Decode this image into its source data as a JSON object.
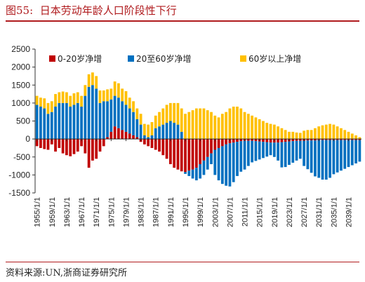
{
  "figure": {
    "title_prefix": "图55:",
    "title": "日本劳动年龄人口阶段性下行",
    "source": "资料来源:UN,浙商证券研究所"
  },
  "colors": {
    "youth": "#c00000",
    "working": "#0070c0",
    "elderly": "#ffc000",
    "accent": "#b01b1e"
  },
  "chart_data": {
    "type": "bar",
    "stacked": true,
    "title": "",
    "xlabel": "",
    "ylabel": "",
    "ylim": [
      -1500,
      2500
    ],
    "yticks": [
      -1500,
      -1000,
      -500,
      0,
      500,
      1000,
      1500,
      2000,
      2500
    ],
    "legend_position": "top",
    "grid": false,
    "x_tick_labels": [
      "1955/1/1",
      "1959/1/1",
      "1963/1/1",
      "1967/1/1",
      "1971/1/1",
      "1975/1/1",
      "1979/1/1",
      "1983/1/1",
      "1987/1/1",
      "1991/1/1",
      "1995/1/1",
      "1999/1/1",
      "2003/1/1",
      "2007/1/1",
      "2011/1/1",
      "2015/1/1",
      "2019/1/1",
      "2023/1/1",
      "2027/1/1",
      "2031/1/1",
      "2035/1/1",
      "2039/1/1"
    ],
    "series": [
      {
        "name": "0-20岁净增",
        "key": "youth",
        "values": [
          -200,
          -250,
          -280,
          -300,
          -150,
          -350,
          -250,
          -400,
          -450,
          -480,
          -420,
          -350,
          -200,
          -400,
          -800,
          -600,
          -550,
          -350,
          -200,
          50,
          200,
          350,
          300,
          250,
          200,
          150,
          100,
          50,
          -80,
          -150,
          -200,
          -250,
          -300,
          -350,
          -450,
          -550,
          -700,
          -800,
          -850,
          -900,
          -920,
          -880,
          -850,
          -800,
          -700,
          -600,
          -500,
          -400,
          -300,
          -250,
          -200,
          -150,
          -120,
          -100,
          -80,
          -60,
          -50,
          -50,
          -50,
          -60,
          -70,
          -80,
          -90,
          -100,
          -100,
          -100,
          -90,
          -80,
          -70,
          -60,
          -50,
          -50,
          -50,
          -40,
          -40,
          -40,
          -30,
          -30,
          -30,
          -30,
          -30,
          -30,
          -30,
          -30,
          -30,
          -30,
          -30,
          -30
        ]
      },
      {
        "name": "20至60岁净增",
        "key": "working",
        "values": [
          950,
          900,
          850,
          700,
          750,
          900,
          1000,
          1000,
          1000,
          900,
          950,
          1000,
          900,
          1200,
          1450,
          1500,
          1400,
          1000,
          1050,
          1000,
          900,
          850,
          850,
          800,
          750,
          700,
          650,
          500,
          400,
          100,
          50,
          100,
          300,
          350,
          400,
          450,
          500,
          450,
          400,
          200,
          -50,
          -150,
          -250,
          -350,
          -400,
          -400,
          -350,
          -300,
          -700,
          -900,
          -1050,
          -1150,
          -1200,
          -1100,
          -950,
          -850,
          -800,
          -700,
          -600,
          -550,
          -500,
          -450,
          -400,
          -350,
          -400,
          -500,
          -700,
          -700,
          -650,
          -600,
          -550,
          -500,
          -700,
          -800,
          -900,
          -1000,
          -1050,
          -1100,
          -1100,
          -1050,
          -950,
          -900,
          -850,
          -800,
          -750,
          -700,
          -650,
          -600
        ]
      },
      {
        "name": "60岁以上净增",
        "key": "elderly",
        "values": [
          250,
          250,
          280,
          300,
          300,
          350,
          300,
          320,
          300,
          300,
          320,
          300,
          300,
          300,
          350,
          350,
          350,
          350,
          300,
          330,
          300,
          400,
          400,
          350,
          380,
          300,
          300,
          300,
          300,
          320,
          350,
          370,
          350,
          400,
          450,
          500,
          500,
          550,
          600,
          650,
          700,
          750,
          800,
          850,
          850,
          850,
          800,
          750,
          650,
          600,
          700,
          750,
          850,
          900,
          900,
          850,
          750,
          700,
          650,
          600,
          550,
          500,
          450,
          420,
          400,
          350,
          300,
          250,
          200,
          200,
          180,
          170,
          230,
          250,
          250,
          300,
          350,
          380,
          400,
          420,
          400,
          350,
          300,
          250,
          200,
          150,
          100,
          50
        ]
      }
    ]
  }
}
